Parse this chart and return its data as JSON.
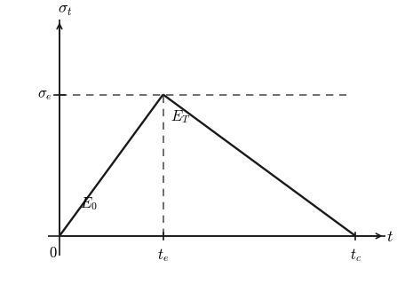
{
  "t_e": 0.35,
  "t_c": 1.0,
  "sigma_e": 0.72,
  "xlim": [
    -0.04,
    1.1
  ],
  "ylim": [
    -0.1,
    1.1
  ],
  "line_color": "#1a1a1a",
  "dashed_color": "#555555",
  "label_sigma_t": "$\\sigma_t$",
  "label_sigma_e": "$\\sigma_e$",
  "label_t": "$t$",
  "label_0": "$0$",
  "label_te": "$t_e$",
  "label_tc": "$t_c$",
  "label_E0": "$E_0$",
  "label_ET": "$E_T$",
  "linewidth": 1.7,
  "dashed_linewidth": 1.2,
  "fontsize": 12,
  "fontsize_axis": 13
}
